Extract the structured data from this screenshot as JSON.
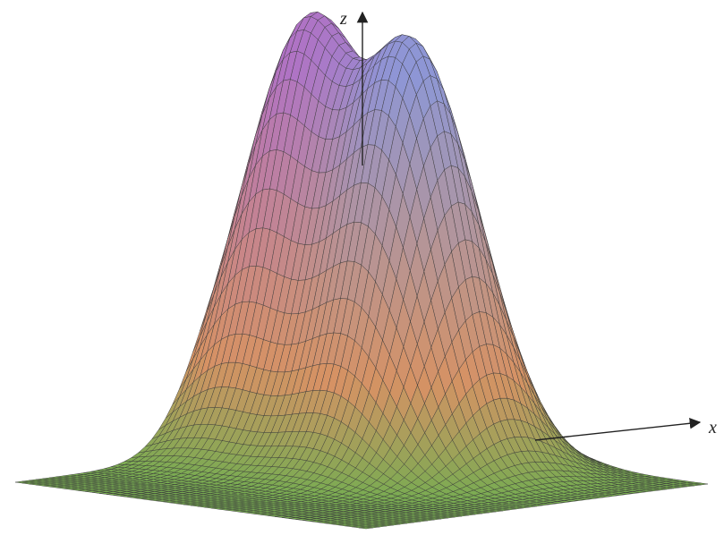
{
  "axes": {
    "z_label": "z",
    "x_label": "x"
  }
}
